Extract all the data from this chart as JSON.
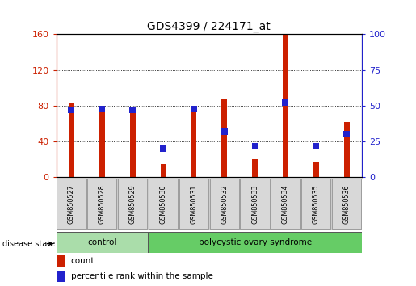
{
  "title": "GDS4399 / 224171_at",
  "samples": [
    "GSM850527",
    "GSM850528",
    "GSM850529",
    "GSM850530",
    "GSM850531",
    "GSM850532",
    "GSM850533",
    "GSM850534",
    "GSM850535",
    "GSM850536"
  ],
  "count_values": [
    83,
    75,
    76,
    15,
    80,
    88,
    20,
    160,
    18,
    62
  ],
  "percentile_values": [
    47,
    48,
    47,
    20,
    48,
    32,
    22,
    52,
    22,
    30
  ],
  "ylim_left": [
    0,
    160
  ],
  "ylim_right": [
    0,
    100
  ],
  "yticks_left": [
    0,
    40,
    80,
    120,
    160
  ],
  "yticks_right": [
    0,
    25,
    50,
    75,
    100
  ],
  "bar_color_count": "#cc2000",
  "bar_color_percentile": "#2222cc",
  "groups": [
    {
      "label": "control",
      "indices": [
        0,
        1,
        2
      ],
      "color": "#aaddaa"
    },
    {
      "label": "polycystic ovary syndrome",
      "indices": [
        3,
        4,
        5,
        6,
        7,
        8,
        9
      ],
      "color": "#66cc66"
    }
  ],
  "disease_state_label": "disease state",
  "legend_count_label": "count",
  "legend_percentile_label": "percentile rank within the sample",
  "background_color": "#ffffff",
  "plot_bg_color": "#ffffff",
  "tick_label_color_left": "#cc2000",
  "tick_label_color_right": "#2222cc",
  "bar_width": 0.18,
  "dot_size": 28,
  "dotted_grid_color": "#000000",
  "label_box_color": "#d8d8d8",
  "label_box_edge": "#888888"
}
